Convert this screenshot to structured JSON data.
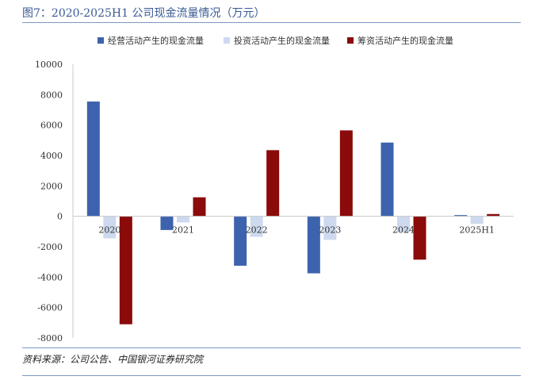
{
  "header": {
    "title": "图7：2020-2025H1 公司现金流量情况（万元）"
  },
  "footer": {
    "source": "资料来源：公司公告、中国银河证券研究院"
  },
  "chart_data": {
    "type": "bar",
    "title": "",
    "xlabel": "",
    "ylabel": "",
    "categories": [
      "2020",
      "2021",
      "2022",
      "2023",
      "2024",
      "2025H1"
    ],
    "series": [
      {
        "name": "经营活动产生的现金流量",
        "color": "#3d63ae",
        "values": [
          7550,
          -900,
          -3250,
          -3750,
          4850,
          80
        ]
      },
      {
        "name": "投资活动产生的现金流量",
        "color": "#cdd9ee",
        "values": [
          -1450,
          -400,
          -1350,
          -1550,
          -1050,
          -500
        ]
      },
      {
        "name": "筹资活动产生的现金流量",
        "color": "#8b0a0a",
        "values": [
          -7100,
          1250,
          4350,
          5650,
          -2850,
          150
        ]
      }
    ],
    "ylim": [
      -8000,
      10000
    ],
    "yticks": [
      -8000,
      -6000,
      -4000,
      -2000,
      0,
      2000,
      4000,
      6000,
      8000,
      10000
    ],
    "grid": false,
    "legend_position": "top"
  }
}
